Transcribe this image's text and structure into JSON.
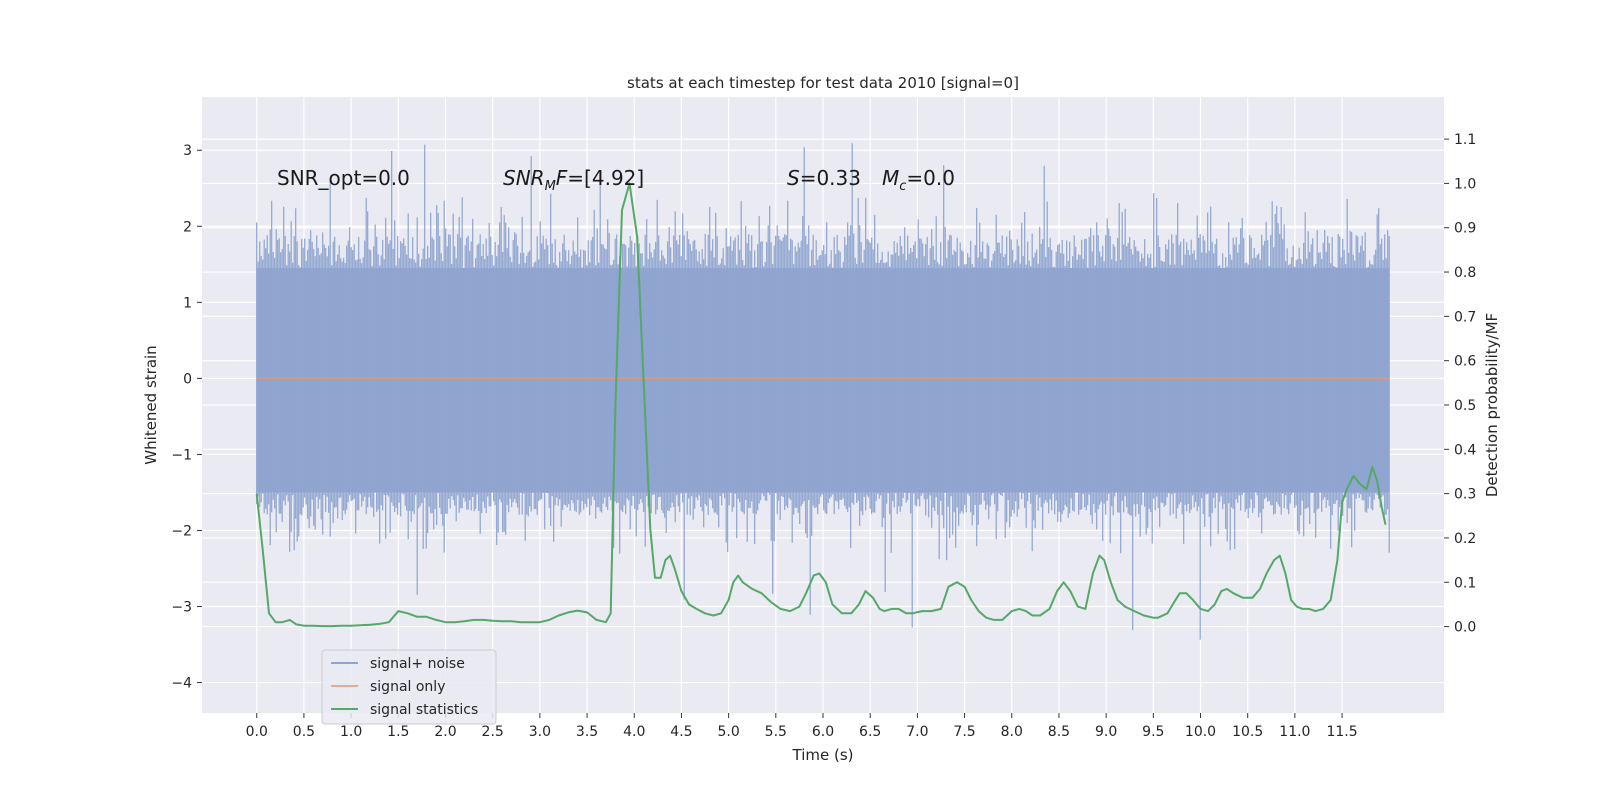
{
  "chart_data": {
    "type": "line",
    "title": "stats at each timestep for test data 2010 [signal=0]",
    "xlabel": "Time (s)",
    "ylabel": "Whitened strain",
    "y2label": "Detection probability/MF",
    "xlim": [
      -0.58,
      12.58
    ],
    "ylim": [
      -4.4,
      3.7
    ],
    "y2lim": [
      -0.195,
      1.195
    ],
    "xticks": [
      0.0,
      0.5,
      1.0,
      1.5,
      2.0,
      2.5,
      3.0,
      3.5,
      4.0,
      4.5,
      5.0,
      5.5,
      6.0,
      6.5,
      7.0,
      7.5,
      8.0,
      8.5,
      9.0,
      9.5,
      10.0,
      10.5,
      11.0,
      11.5
    ],
    "xtick_labels": [
      "0.0",
      "0.5",
      "1.0",
      "1.5",
      "2.0",
      "2.5",
      "3.0",
      "3.5",
      "4.0",
      "4.5",
      "5.0",
      "5.5",
      "6.0",
      "6.5",
      "7.0",
      "7.5",
      "8.0",
      "8.5",
      "9.0",
      "9.5",
      "10.0",
      "10.5",
      "11.0",
      "11.5"
    ],
    "yticks": [
      -4,
      -3,
      -2,
      -1,
      0,
      1,
      2,
      3
    ],
    "ytick_labels": [
      "−4",
      "−3",
      "−2",
      "−1",
      "0",
      "1",
      "2",
      "3"
    ],
    "y2ticks": [
      0.0,
      0.1,
      0.2,
      0.3,
      0.4,
      0.5,
      0.6,
      0.7,
      0.8,
      0.9,
      1.0,
      1.1
    ],
    "y2tick_labels": [
      "0.0",
      "0.1",
      "0.2",
      "0.3",
      "0.4",
      "0.5",
      "0.6",
      "0.7",
      "0.8",
      "0.9",
      "1.0",
      "1.1"
    ],
    "grid": true,
    "legend_position": "lower-left",
    "noise_envelope": {
      "x_range": [
        0.0,
        12.0
      ],
      "typical_upper": 1.9,
      "typical_lower": -1.8,
      "max": 3.35,
      "min": -3.6
    },
    "series": [
      {
        "name": "signal+ noise",
        "color": "#4c72b0",
        "axis": "left",
        "render": "noise"
      },
      {
        "name": "signal only",
        "color": "#dd8452",
        "axis": "left",
        "x": [
          0.0,
          12.0
        ],
        "y": [
          0.0,
          0.0
        ]
      },
      {
        "name": "signal statistics",
        "color": "#55a868",
        "axis": "right",
        "x": [
          0.0,
          0.06,
          0.13,
          0.2,
          0.27,
          0.35,
          0.42,
          0.5,
          0.6,
          0.7,
          0.8,
          0.9,
          1.0,
          1.1,
          1.2,
          1.3,
          1.4,
          1.5,
          1.6,
          1.7,
          1.8,
          1.9,
          2.0,
          2.1,
          2.2,
          2.3,
          2.4,
          2.5,
          2.6,
          2.7,
          2.8,
          2.9,
          3.0,
          3.1,
          3.2,
          3.3,
          3.4,
          3.5,
          3.6,
          3.7,
          3.75,
          3.8,
          3.87,
          3.95,
          4.03,
          4.1,
          4.17,
          4.22,
          4.28,
          4.33,
          4.38,
          4.43,
          4.5,
          4.58,
          4.66,
          4.75,
          4.84,
          4.92,
          5.0,
          5.05,
          5.1,
          5.15,
          5.25,
          5.35,
          5.45,
          5.55,
          5.65,
          5.75,
          5.82,
          5.9,
          5.96,
          6.03,
          6.1,
          6.2,
          6.3,
          6.38,
          6.45,
          6.53,
          6.6,
          6.65,
          6.73,
          6.8,
          6.88,
          6.95,
          7.05,
          7.15,
          7.25,
          7.33,
          7.42,
          7.5,
          7.57,
          7.65,
          7.73,
          7.81,
          7.9,
          8.0,
          8.08,
          8.15,
          8.22,
          8.3,
          8.4,
          8.48,
          8.55,
          8.62,
          8.7,
          8.78,
          8.86,
          8.93,
          8.98,
          9.05,
          9.12,
          9.2,
          9.3,
          9.4,
          9.5,
          9.55,
          9.65,
          9.72,
          9.78,
          9.85,
          9.92,
          10.0,
          10.08,
          10.15,
          10.22,
          10.28,
          10.35,
          10.45,
          10.55,
          10.63,
          10.7,
          10.78,
          10.84,
          10.9,
          10.96,
          11.02,
          11.08,
          11.15,
          11.22,
          11.3,
          11.38,
          11.45,
          11.5,
          11.55,
          11.62,
          11.7,
          11.76,
          11.82,
          11.87,
          11.92,
          11.96
        ],
        "y": [
          0.3,
          0.18,
          0.03,
          0.01,
          0.01,
          0.015,
          0.005,
          0.002,
          0.002,
          0.001,
          0.001,
          0.002,
          0.002,
          0.003,
          0.004,
          0.006,
          0.01,
          0.035,
          0.03,
          0.022,
          0.022,
          0.015,
          0.01,
          0.01,
          0.012,
          0.015,
          0.015,
          0.013,
          0.012,
          0.012,
          0.01,
          0.01,
          0.01,
          0.015,
          0.025,
          0.032,
          0.036,
          0.032,
          0.015,
          0.01,
          0.03,
          0.5,
          0.94,
          1.0,
          0.88,
          0.55,
          0.22,
          0.11,
          0.11,
          0.15,
          0.16,
          0.13,
          0.08,
          0.05,
          0.04,
          0.03,
          0.025,
          0.03,
          0.06,
          0.1,
          0.115,
          0.1,
          0.085,
          0.075,
          0.055,
          0.04,
          0.035,
          0.045,
          0.075,
          0.115,
          0.12,
          0.1,
          0.05,
          0.03,
          0.03,
          0.05,
          0.08,
          0.065,
          0.04,
          0.035,
          0.04,
          0.04,
          0.03,
          0.03,
          0.035,
          0.035,
          0.04,
          0.09,
          0.1,
          0.09,
          0.06,
          0.035,
          0.02,
          0.015,
          0.015,
          0.035,
          0.04,
          0.035,
          0.025,
          0.025,
          0.04,
          0.08,
          0.1,
          0.08,
          0.045,
          0.04,
          0.12,
          0.16,
          0.15,
          0.1,
          0.06,
          0.045,
          0.035,
          0.025,
          0.02,
          0.02,
          0.03,
          0.055,
          0.075,
          0.075,
          0.06,
          0.04,
          0.035,
          0.05,
          0.08,
          0.085,
          0.075,
          0.065,
          0.065,
          0.085,
          0.12,
          0.15,
          0.16,
          0.12,
          0.06,
          0.045,
          0.04,
          0.04,
          0.035,
          0.04,
          0.06,
          0.15,
          0.28,
          0.31,
          0.34,
          0.32,
          0.31,
          0.36,
          0.33,
          0.27,
          0.23
        ]
      }
    ],
    "annotations": [
      {
        "id": "snr-opt",
        "text": "SNR_opt=0.0",
        "x": 0.2,
        "y": 2.6
      },
      {
        "id": "snr-mf",
        "text": "=[4.92]",
        "x": 2.6,
        "y": 2.6
      },
      {
        "id": "s-mc",
        "text": "=0.33",
        "x": 5.6,
        "y": 2.6
      },
      {
        "id": "mc",
        "text": "=0.0",
        "x": 6.6,
        "y": 2.6
      }
    ],
    "annotation_math": {
      "snr_main": "SNR",
      "snr_sub": "M",
      "snr_tail": "F",
      "s_symbol": "S",
      "mc_main": "M",
      "mc_sub": "c"
    }
  }
}
